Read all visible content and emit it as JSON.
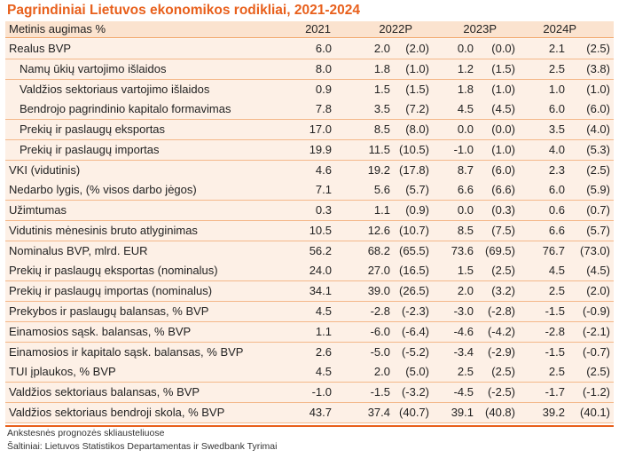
{
  "title": "Pagrindiniai Lietuvos ekonomikos rodikliai, 2021-2024",
  "header": {
    "label": "Metinis augimas %",
    "years": [
      "2021",
      "2022P",
      "2023P",
      "2024P"
    ]
  },
  "rows": [
    {
      "label": "Realus BVP",
      "indent": false,
      "v": [
        "6.0",
        "2.0",
        "(2.0)",
        "0.0",
        "(0.0)",
        "2.1",
        "(2.5)"
      ]
    },
    {
      "label": "Namų ūkių vartojimo išlaidos",
      "indent": true,
      "v": [
        "8.0",
        "1.8",
        "(1.0)",
        "1.2",
        "(1.5)",
        "2.5",
        "(3.8)"
      ]
    },
    {
      "label": "Valdžios sektoriaus vartojimo išlaidos",
      "indent": true,
      "v": [
        "0.9",
        "1.5",
        "(1.5)",
        "1.8",
        "(1.0)",
        "1.0",
        "(1.0)"
      ]
    },
    {
      "label": "Bendrojo pagrindinio kapitalo formavimas",
      "indent": true,
      "v": [
        "7.8",
        "3.5",
        "(7.2)",
        "4.5",
        "(4.5)",
        "6.0",
        "(6.0)"
      ]
    },
    {
      "label": "Prekių ir paslaugų eksportas",
      "indent": true,
      "v": [
        "17.0",
        "8.5",
        "(8.0)",
        "0.0",
        "(0.0)",
        "3.5",
        "(4.0)"
      ]
    },
    {
      "label": "Prekių ir paslaugų importas",
      "indent": true,
      "v": [
        "19.9",
        "11.5",
        "(10.5)",
        "-1.0",
        "(1.0)",
        "4.0",
        "(5.3)"
      ]
    },
    {
      "label": "VKI (vidutinis)",
      "indent": false,
      "v": [
        "4.6",
        "19.2",
        "(17.8)",
        "8.7",
        "(6.0)",
        "2.3",
        "(2.5)"
      ]
    },
    {
      "label": "Nedarbo lygis, (% visos darbo jėgos)",
      "indent": false,
      "v": [
        "7.1",
        "5.6",
        "(5.7)",
        "6.6",
        "(6.6)",
        "6.0",
        "(5.9)"
      ]
    },
    {
      "label": "Užimtumas",
      "indent": false,
      "v": [
        "0.3",
        "1.1",
        "(0.9)",
        "0.0",
        "(0.3)",
        "0.6",
        "(0.7)"
      ]
    },
    {
      "label": "Vidutinis mėnesinis bruto atlyginimas",
      "indent": false,
      "v": [
        "10.5",
        "12.6",
        "(10.7)",
        "8.5",
        "(7.5)",
        "6.6",
        "(5.7)"
      ]
    },
    {
      "label": "Nominalus BVP, mlrd. EUR",
      "indent": false,
      "v": [
        "56.2",
        "68.2",
        "(65.5)",
        "73.6",
        "(69.5)",
        "76.7",
        "(73.0)"
      ]
    },
    {
      "label": "Prekių ir paslaugų eksportas (nominalus)",
      "indent": false,
      "v": [
        "24.0",
        "27.0",
        "(16.5)",
        "1.5",
        "(2.5)",
        "4.5",
        "(4.5)"
      ]
    },
    {
      "label": "Prekių ir paslaugų importas (nominalus)",
      "indent": false,
      "v": [
        "34.1",
        "39.0",
        "(26.5)",
        "2.0",
        "(3.2)",
        "2.5",
        "(2.0)"
      ]
    },
    {
      "label": "Prekybos ir paslaugų balansas, % BVP",
      "indent": false,
      "v": [
        "4.5",
        "-2.8",
        "(-2.3)",
        "-3.0",
        "(-2.8)",
        "-1.5",
        "(-0.9)"
      ]
    },
    {
      "label": "Einamosios sąsk. balansas, % BVP",
      "indent": false,
      "v": [
        "1.1",
        "-6.0",
        "(-6.4)",
        "-4.6",
        "(-4.2)",
        "-2.8",
        "(-2.1)"
      ]
    },
    {
      "label": "Einamosios ir kapitalo sąsk. balansas, % BVP",
      "indent": false,
      "v": [
        "2.6",
        "-5.0",
        "(-5.2)",
        "-3.4",
        "(-2.9)",
        "-1.5",
        "(-0.7)"
      ]
    },
    {
      "label": "TUI įplaukos, % BVP",
      "indent": false,
      "v": [
        "4.5",
        "2.0",
        "(5.0)",
        "2.5",
        "(2.5)",
        "2.5",
        "(2.5)"
      ]
    },
    {
      "label": "Valdžios sektoriaus balansas, % BVP",
      "indent": false,
      "v": [
        "-1.0",
        "-1.5",
        "(-3.2)",
        "-4.5",
        "(-2.5)",
        "-1.7",
        "(-1.2)"
      ]
    },
    {
      "label": "Valdžios sektoriaus bendroji skola, % BVP",
      "indent": false,
      "v": [
        "43.7",
        "37.4",
        "(40.7)",
        "39.1",
        "(40.8)",
        "39.2",
        "(40.1)"
      ]
    }
  ],
  "footnotes": [
    "Ankstesnės prognozės skliausteliuose",
    "Šaltiniai: Lietuvos Statistikos Departamentas ir Swedbank Tyrimai"
  ],
  "colors": {
    "accent": "#e8601c",
    "row_bg": "#fdf0e6",
    "header_bg": "#fbe3cf"
  }
}
